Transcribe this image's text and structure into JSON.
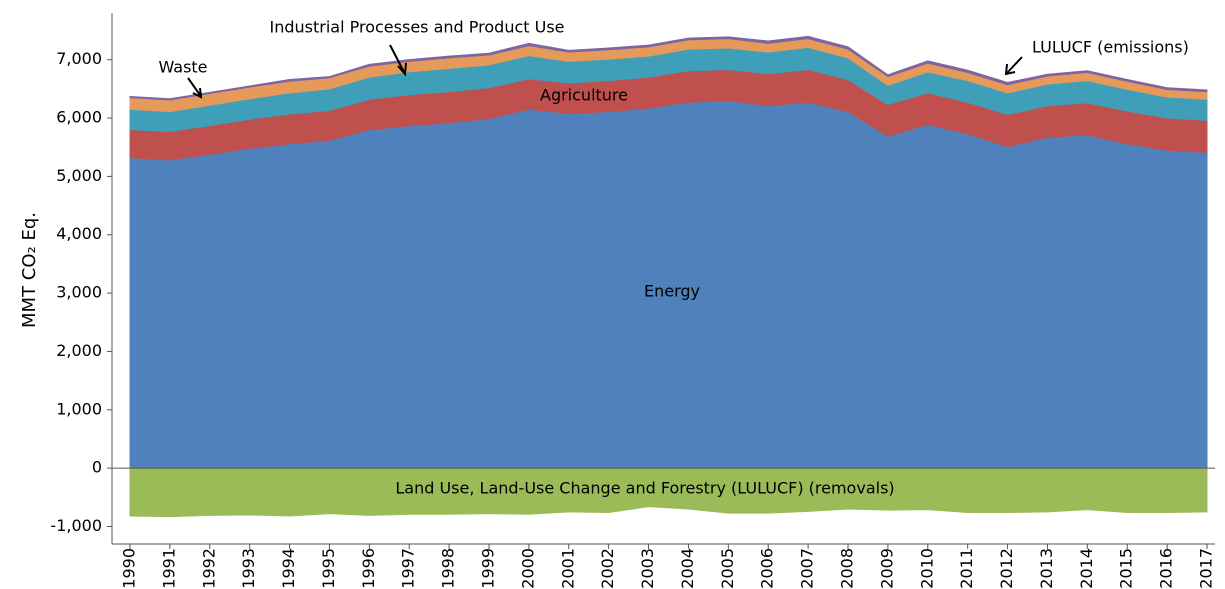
{
  "chart_data": {
    "type": "area",
    "stacked": true,
    "y_label": "MMT CO₂ Eq.",
    "categories": [
      "1990",
      "1991",
      "1992",
      "1993",
      "1994",
      "1995",
      "1996",
      "1997",
      "1998",
      "1999",
      "2000",
      "2001",
      "2002",
      "2003",
      "2004",
      "2005",
      "2006",
      "2007",
      "2008",
      "2009",
      "2010",
      "2011",
      "2012",
      "2013",
      "2014",
      "2015",
      "2016",
      "2017"
    ],
    "series": [
      {
        "name": "Energy",
        "color": "#4f81bd",
        "values": [
          5320,
          5280,
          5380,
          5480,
          5560,
          5620,
          5800,
          5870,
          5920,
          5990,
          6150,
          6080,
          6110,
          6170,
          6270,
          6300,
          6210,
          6270,
          6110,
          5690,
          5890,
          5730,
          5510,
          5670,
          5710,
          5560,
          5450,
          5410
        ]
      },
      {
        "name": "Agriculture",
        "color": "#c0504d",
        "values": [
          480,
          490,
          490,
          500,
          510,
          510,
          520,
          530,
          530,
          530,
          520,
          520,
          530,
          530,
          540,
          530,
          550,
          560,
          550,
          540,
          540,
          540,
          550,
          540,
          550,
          560,
          550,
          550
        ]
      },
      {
        "name": "Industrial Processes and Product Use",
        "color": "#3f9fb8",
        "values": [
          350,
          340,
          350,
          350,
          360,
          370,
          380,
          390,
          400,
          390,
          400,
          370,
          370,
          360,
          370,
          370,
          370,
          380,
          370,
          330,
          360,
          370,
          370,
          370,
          380,
          370,
          360,
          360
        ]
      },
      {
        "name": "Waste",
        "color": "#e69a5a",
        "values": [
          200,
          200,
          200,
          200,
          200,
          190,
          190,
          180,
          180,
          170,
          170,
          160,
          160,
          160,
          160,
          160,
          150,
          150,
          150,
          150,
          150,
          140,
          140,
          140,
          140,
          140,
          130,
          130
        ]
      },
      {
        "name": "LULUCF (emissions)",
        "color": "#8064a2",
        "values": [
          20,
          20,
          20,
          20,
          30,
          20,
          30,
          30,
          30,
          30,
          40,
          30,
          30,
          30,
          30,
          30,
          40,
          40,
          40,
          30,
          40,
          40,
          40,
          30,
          30,
          30,
          30,
          30
        ]
      },
      {
        "name": "Land Use, Land-Use Change and Forestry (LULUCF) (removals)",
        "color": "#9bbb59",
        "values": [
          -820,
          -830,
          -810,
          -800,
          -820,
          -780,
          -810,
          -790,
          -790,
          -780,
          -790,
          -750,
          -760,
          -660,
          -700,
          -770,
          -770,
          -740,
          -700,
          -720,
          -710,
          -760,
          -760,
          -750,
          -710,
          -760,
          -760,
          -750
        ]
      }
    ],
    "ylim": [
      -1300,
      7800
    ],
    "yticks": [
      {
        "value": -1000,
        "label": "-1,000"
      },
      0,
      {
        "value": 1000,
        "label": "1,000"
      },
      {
        "value": 2000,
        "label": "2,000"
      },
      {
        "value": 3000,
        "label": "3,000"
      },
      {
        "value": 4000,
        "label": "4,000"
      },
      {
        "value": 5000,
        "label": "5,000"
      },
      {
        "value": 6000,
        "label": "6,000"
      },
      {
        "value": 7000,
        "label": "7,000"
      }
    ]
  }
}
